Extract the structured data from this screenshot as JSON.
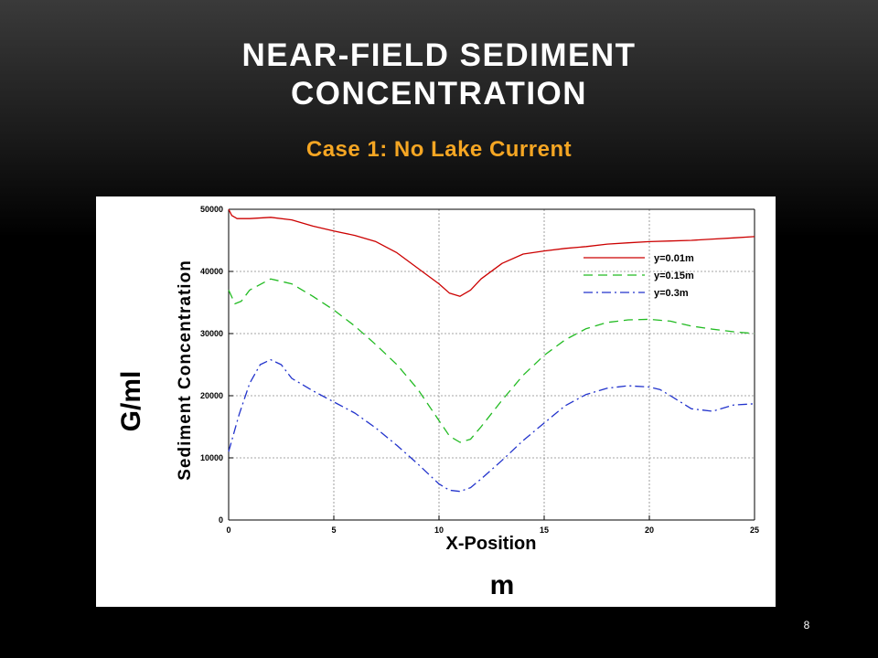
{
  "slide": {
    "title_line1": "NEAR-FIELD SEDIMENT",
    "title_line2": "CONCENTRATION",
    "subtitle": "Case 1:  No Lake Current",
    "page_number": "8"
  },
  "chart_data": {
    "type": "line",
    "xlabel": "X-Position",
    "ylabel": "Sediment Concentration",
    "xlim": [
      0,
      25
    ],
    "ylim": [
      0,
      50000
    ],
    "x_ticks": [
      0,
      5,
      10,
      15,
      20,
      25
    ],
    "y_ticks": [
      0,
      10000,
      20000,
      30000,
      40000,
      50000
    ],
    "grid": true,
    "legend_position": "top-right",
    "annotations": {
      "y_unit": "G/ml",
      "x_unit": "m"
    },
    "series": [
      {
        "name": "y=0.01m",
        "color": "#cc0000",
        "dash": "solid",
        "x": [
          0,
          0.15,
          0.4,
          1,
          2,
          3,
          4,
          5,
          6,
          7,
          8,
          9,
          10,
          10.5,
          11,
          11.5,
          12,
          13,
          14,
          15,
          16,
          17,
          18,
          19,
          20,
          21,
          22,
          23,
          24,
          25
        ],
        "y": [
          50000,
          49000,
          48500,
          48500,
          48700,
          48300,
          47300,
          46500,
          45800,
          44800,
          43000,
          40500,
          38000,
          36500,
          36000,
          37000,
          38800,
          41300,
          42800,
          43300,
          43700,
          44000,
          44400,
          44600,
          44800,
          44900,
          45000,
          45200,
          45400,
          45600
        ]
      },
      {
        "name": "y=0.15m",
        "color": "#22bb22",
        "dash": "dashed",
        "x": [
          0,
          0.3,
          0.6,
          1,
          2,
          3,
          4,
          5,
          6,
          7,
          8,
          9,
          10,
          10.5,
          11,
          11.5,
          12,
          13,
          14,
          15,
          16,
          17,
          18,
          19,
          20,
          21,
          22,
          23,
          24,
          25
        ],
        "y": [
          37000,
          34800,
          35200,
          37000,
          38800,
          38000,
          36000,
          33800,
          31200,
          28200,
          25000,
          21000,
          16000,
          13500,
          12500,
          13000,
          15000,
          19300,
          23300,
          26500,
          29000,
          30800,
          31800,
          32200,
          32300,
          32000,
          31200,
          30700,
          30300,
          30000
        ]
      },
      {
        "name": "y=0.3m",
        "color": "#2233cc",
        "dash": "dashdot",
        "x": [
          0,
          0.5,
          1,
          1.5,
          2,
          2.5,
          3,
          4,
          5,
          6,
          7,
          8,
          9,
          10,
          10.5,
          11,
          11.5,
          12,
          13,
          14,
          15,
          16,
          17,
          18,
          19,
          20,
          20.5,
          21,
          22,
          23,
          24,
          25
        ],
        "y": [
          11000,
          17000,
          22000,
          25000,
          25800,
          25000,
          22800,
          20800,
          19000,
          17200,
          14800,
          12000,
          9000,
          5800,
          4800,
          4600,
          5200,
          6600,
          9600,
          12800,
          15600,
          18400,
          20200,
          21200,
          21600,
          21400,
          21000,
          20000,
          17900,
          17500,
          18500,
          18700
        ]
      }
    ]
  }
}
